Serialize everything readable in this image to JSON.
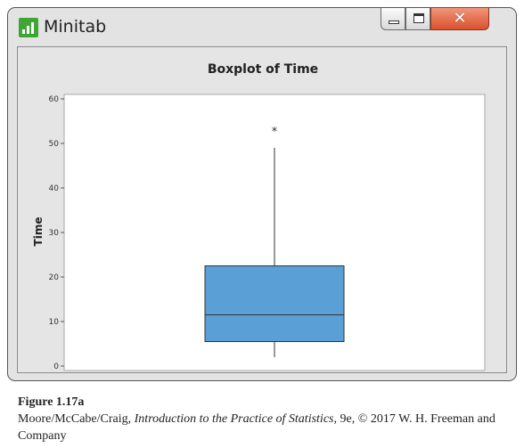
{
  "window": {
    "app_title": "Minitab",
    "close_glyph": "✕",
    "colors": {
      "app_icon": "#3fa535",
      "close_button": "#d9512e",
      "box_fill": "#5aa0d6"
    }
  },
  "chart_data": {
    "type": "boxplot",
    "title": "Boxplot of Time",
    "ylabel": "Time",
    "xlabel": "",
    "ylim": [
      0,
      60
    ],
    "yticks": [
      0,
      10,
      20,
      30,
      40,
      50,
      60
    ],
    "series": [
      {
        "whisker_low": 2,
        "q1": 5.5,
        "median": 11.5,
        "q3": 22.5,
        "whisker_high": 49,
        "outliers": [
          53
        ]
      }
    ],
    "outlier_symbol": "*",
    "grid": false
  },
  "caption": {
    "figure_label": "Figure 1.17a",
    "authors": "Moore/McCabe/Craig, ",
    "book_title": "Introduction to the Practice of Statistics",
    "rest": ", 9e, © 2017 W. H. Freeman and Company"
  }
}
